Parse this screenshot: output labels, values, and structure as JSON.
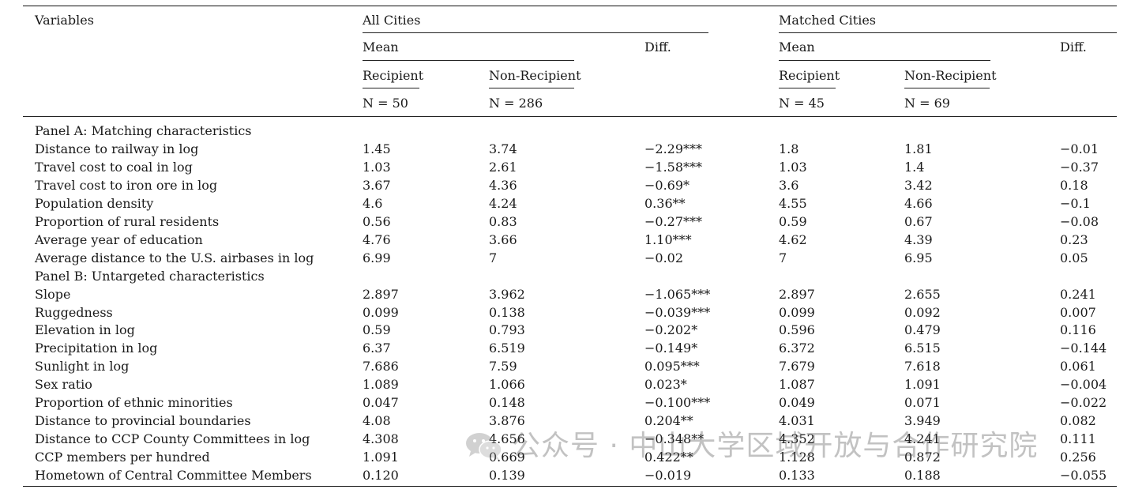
{
  "header": {
    "variables": "Variables",
    "all_cities": "All Cities",
    "matched_cities": "Matched Cities",
    "mean": "Mean",
    "diff": "Diff.",
    "recipient": "Recipient",
    "non_recipient": "Non-Recipient",
    "n_all_recipient": "N = 50",
    "n_all_nonrecipient": "N = 286",
    "n_matched_recipient": "N = 45",
    "n_matched_nonrecipient": "N = 69"
  },
  "rows": [
    {
      "label": "Panel A: Matching characteristics",
      "panel": true
    },
    {
      "label": "Distance to railway in log",
      "v": [
        "1.45",
        "3.74",
        "−2.29***",
        "1.8",
        "1.81",
        "−0.01"
      ]
    },
    {
      "label": "Travel cost to coal in log",
      "v": [
        "1.03",
        "2.61",
        "−1.58***",
        "1.03",
        "1.4",
        "−0.37"
      ]
    },
    {
      "label": "Travel cost to iron ore in log",
      "v": [
        "3.67",
        "4.36",
        "−0.69*",
        "3.6",
        "3.42",
        "0.18"
      ]
    },
    {
      "label": "Population density",
      "v": [
        "4.6",
        "4.24",
        "0.36**",
        "4.55",
        "4.66",
        "−0.1"
      ]
    },
    {
      "label": "Proportion of rural residents",
      "v": [
        "0.56",
        "0.83",
        "−0.27***",
        "0.59",
        "0.67",
        "−0.08"
      ]
    },
    {
      "label": "Average year of education",
      "v": [
        "4.76",
        "3.66",
        "1.10***",
        "4.62",
        "4.39",
        "0.23"
      ]
    },
    {
      "label": "Average distance to the U.S. airbases in log",
      "v": [
        "6.99",
        "7",
        "−0.02",
        "7",
        "6.95",
        "0.05"
      ]
    },
    {
      "label": "Panel B: Untargeted characteristics",
      "panel": true
    },
    {
      "label": "Slope",
      "v": [
        "2.897",
        "3.962",
        "−1.065***",
        "2.897",
        "2.655",
        "0.241"
      ]
    },
    {
      "label": "Ruggedness",
      "v": [
        "0.099",
        "0.138",
        "−0.039***",
        "0.099",
        "0.092",
        "0.007"
      ]
    },
    {
      "label": "Elevation in log",
      "v": [
        "0.59",
        "0.793",
        "−0.202*",
        "0.596",
        "0.479",
        "0.116"
      ]
    },
    {
      "label": "Precipitation in log",
      "v": [
        "6.37",
        "6.519",
        "−0.149*",
        "6.372",
        "6.515",
        "−0.144"
      ]
    },
    {
      "label": "Sunlight in log",
      "v": [
        "7.686",
        "7.59",
        "0.095***",
        "7.679",
        "7.618",
        "0.061"
      ]
    },
    {
      "label": "Sex ratio",
      "v": [
        "1.089",
        "1.066",
        "0.023*",
        "1.087",
        "1.091",
        "−0.004"
      ]
    },
    {
      "label": "Proportion of ethnic minorities",
      "v": [
        "0.047",
        "0.148",
        "−0.100***",
        "0.049",
        "0.071",
        "−0.022"
      ]
    },
    {
      "label": "Distance to provincial boundaries",
      "v": [
        "4.08",
        "3.876",
        "0.204**",
        "4.031",
        "3.949",
        "0.082"
      ]
    },
    {
      "label": "Distance to CCP County Committees in log",
      "v": [
        "4.308",
        "4.656",
        "−0.348**",
        "4.352",
        "4.241",
        "0.111"
      ]
    },
    {
      "label": "CCP members per hundred",
      "v": [
        "1.091",
        "0.669",
        "0.422**",
        "1.128",
        "0.872",
        "0.256"
      ]
    },
    {
      "label": "Hometown of Central Committee Members",
      "v": [
        "0.120",
        "0.139",
        "−0.019",
        "0.133",
        "0.188",
        "−0.055"
      ]
    }
  ],
  "watermark": {
    "text": "公众号 · 中山大学区域开放与合作研究院",
    "icon": "wechat-icon"
  }
}
